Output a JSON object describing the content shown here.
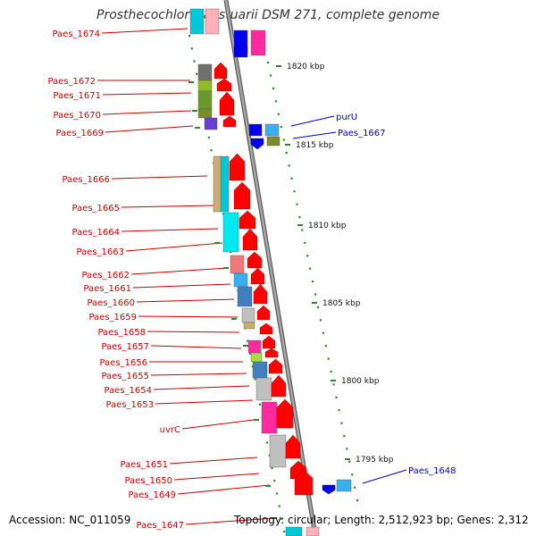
{
  "title": "Prosthecochloris aestuarii DSM 271, complete genome",
  "accession": "Accession: NC_011059",
  "topology": "Topology: circular; Length: 2,512,923 bp; Genes: 2,312",
  "scale_labels": [
    "1820 kbp",
    "1815 kbp",
    "1810 kbp",
    "1805 kbp",
    "1800 kbp",
    "1795 kbp"
  ],
  "left_genes": [
    "Paes_1674",
    "Paes_1672",
    "Paes_1671",
    "Paes_1670",
    "Paes_1669",
    "Paes_1666",
    "Paes_1665",
    "Paes_1664",
    "Paes_1663",
    "Paes_1662",
    "Paes_1661",
    "Paes_1660",
    "Paes_1659",
    "Paes_1658",
    "Paes_1657",
    "Paes_1656",
    "Paes_1655",
    "Paes_1654",
    "Paes_1653",
    "uvrC",
    "Paes_1651",
    "Paes_1650",
    "Paes_1649",
    "Paes_1647"
  ],
  "right_genes": [
    "purU",
    "Paes_1667",
    "Paes_1648"
  ],
  "colors": {
    "left_label": "#cc0000",
    "right_label": "#0000cc",
    "backbone": "#8c8c8c",
    "tick": "#2a8a2a",
    "arrow_red": "#ff0000",
    "arrow_blue": "#0000ee"
  }
}
